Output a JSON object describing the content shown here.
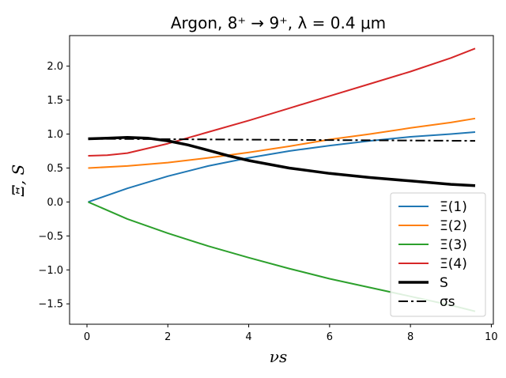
{
  "chart_data": {
    "type": "line",
    "title": "Argon, 8⁺ → 9⁺, λ = 0.4 μm",
    "xlabel": "νs",
    "ylabel": "Ξ, S",
    "xlim": [
      -0.43,
      10.05
    ],
    "ylim": [
      -1.8,
      2.45
    ],
    "xticks": [
      0,
      2,
      4,
      6,
      8,
      10
    ],
    "yticks": [
      -1.5,
      -1.0,
      -0.5,
      0.0,
      0.5,
      1.0,
      1.5,
      2.0
    ],
    "ytick_labels": [
      "−1.5",
      "−1.0",
      "−0.5",
      "0.0",
      "0.5",
      "1.0",
      "1.5",
      "2.0"
    ],
    "grid": false,
    "legend_position": "lower right",
    "series": [
      {
        "name": "Ξ(1)",
        "color": "#1f77b4",
        "style": "solid",
        "width": 2,
        "x": [
          0.03,
          1.0,
          2.0,
          3.0,
          4.0,
          5.0,
          6.0,
          7.0,
          8.0,
          9.0,
          9.6
        ],
        "y": [
          0.0,
          0.2,
          0.38,
          0.53,
          0.65,
          0.75,
          0.83,
          0.9,
          0.96,
          1.0,
          1.03
        ]
      },
      {
        "name": "Ξ(2)",
        "color": "#ff7f0e",
        "style": "solid",
        "width": 2,
        "x": [
          0.03,
          1.0,
          2.0,
          3.0,
          4.0,
          5.0,
          6.0,
          7.0,
          8.0,
          9.0,
          9.6
        ],
        "y": [
          0.5,
          0.53,
          0.58,
          0.65,
          0.73,
          0.82,
          0.92,
          1.0,
          1.09,
          1.17,
          1.23
        ]
      },
      {
        "name": "Ξ(3)",
        "color": "#2ca02c",
        "style": "solid",
        "width": 2,
        "x": [
          0.03,
          1.0,
          2.0,
          3.0,
          4.0,
          5.0,
          6.0,
          7.0,
          8.0,
          9.0,
          9.6
        ],
        "y": [
          0.0,
          -0.25,
          -0.46,
          -0.65,
          -0.82,
          -0.98,
          -1.13,
          -1.26,
          -1.39,
          -1.52,
          -1.61
        ]
      },
      {
        "name": "Ξ(4)",
        "color": "#d62728",
        "style": "solid",
        "width": 2,
        "x": [
          0.03,
          0.5,
          1.0,
          2.0,
          3.0,
          4.0,
          5.0,
          6.0,
          7.0,
          8.0,
          9.0,
          9.6
        ],
        "y": [
          0.68,
          0.69,
          0.72,
          0.86,
          1.03,
          1.2,
          1.38,
          1.56,
          1.74,
          1.92,
          2.12,
          2.26
        ]
      },
      {
        "name": "S",
        "color": "#000000",
        "style": "solid",
        "width": 3.5,
        "x": [
          0.03,
          0.5,
          1.0,
          1.5,
          2.0,
          2.5,
          3.0,
          3.5,
          4.0,
          5.0,
          6.0,
          7.0,
          8.0,
          9.0,
          9.6
        ],
        "y": [
          0.93,
          0.94,
          0.95,
          0.94,
          0.9,
          0.84,
          0.76,
          0.68,
          0.61,
          0.5,
          0.42,
          0.36,
          0.31,
          0.26,
          0.24
        ]
      },
      {
        "name": "σs",
        "color": "#000000",
        "style": "dashdot",
        "width": 2,
        "x": [
          0.03,
          9.6
        ],
        "y": [
          0.93,
          0.9
        ]
      }
    ]
  }
}
